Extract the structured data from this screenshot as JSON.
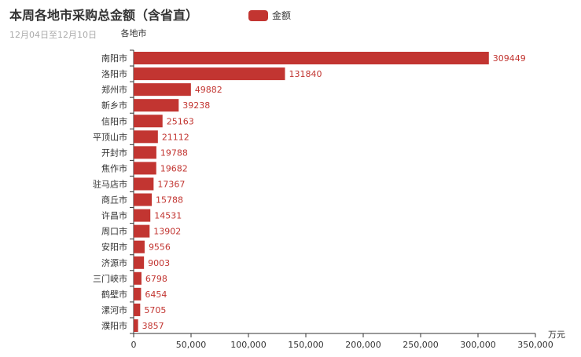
{
  "chart_data": {
    "type": "bar",
    "orientation": "horizontal",
    "title": "本周各地市采购总金额（含省直）",
    "subtitle": "12月04日至12月10日",
    "legend": [
      "金额"
    ],
    "legend_placement": "top-center",
    "ylabel": "各地市",
    "xlabel": "万元",
    "xlim": [
      0,
      350000
    ],
    "x_ticks": [
      "0",
      "50,000",
      "100,000",
      "150,000",
      "200,000",
      "250,000",
      "300,000",
      "350,000"
    ],
    "grid": false,
    "categories": [
      "南阳市",
      "洛阳市",
      "郑州市",
      "新乡市",
      "信阳市",
      "平顶山市",
      "开封市",
      "焦作市",
      "驻马店市",
      "商丘市",
      "许昌市",
      "周口市",
      "安阳市",
      "济源市",
      "三门峡市",
      "鹤壁市",
      "漯河市",
      "濮阳市"
    ],
    "series": [
      {
        "name": "金额",
        "color": "#c23531",
        "values": [
          309449,
          131840,
          49882,
          39238,
          25163,
          21112,
          19788,
          19682,
          17367,
          15788,
          14531,
          13902,
          9556,
          9003,
          6798,
          6454,
          5705,
          3857
        ]
      }
    ]
  }
}
